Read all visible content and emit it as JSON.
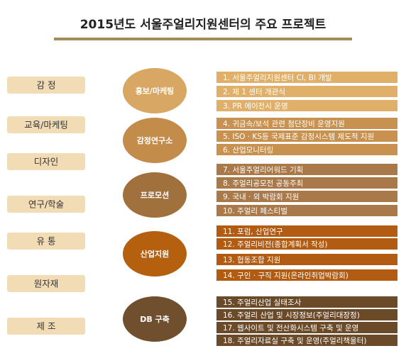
{
  "title": "2015년도 서울주얼리지원센터의 주요 프로젝트",
  "categories": [
    "감 정",
    "교육/마케팅",
    "디자인",
    "연구/학술",
    "유 통",
    "원자재",
    "제 조"
  ],
  "groups": [
    {
      "label": "홍보/마케팅",
      "items": [
        "1.  서울주얼리지원센터 CI, BI 개발",
        "2.  제 1 센터 개관식",
        "3.  PR 에이전시 운영"
      ]
    },
    {
      "label": "감정연구소",
      "items": [
        "4.  귀금속/보석 관련 첨단장비 운영지원",
        "5.  ISO · KS등 국제표준 감정시스템 제도적 지원",
        "6.  산업모니터링"
      ]
    },
    {
      "label": "프로모션",
      "items": [
        "7.  서울주얼리어워드 기획",
        "8.  주얼리공모전 공동주최",
        "9.  국내 · 외 박람회 지원",
        "10.  주얼리 페스티벌"
      ]
    },
    {
      "label": "산업지원",
      "items": [
        "11.  포럼, 산업연구",
        "12.  주얼리비전(종합계획서 작성)",
        "13.  협동조합 지원",
        "14.  구인 · 구직 지원(온라인취업박람회)"
      ]
    },
    {
      "label": "DB 구축",
      "items": [
        "15.  주얼리산업 실태조사",
        "16.  주얼리 산업 및 시장정보(주얼리대장정)",
        "17.  웹사이트 및 전산화시스템 구축 및 운영",
        "18.  주얼리자료실 구축 및 운영(주얼리책울터)"
      ]
    }
  ]
}
